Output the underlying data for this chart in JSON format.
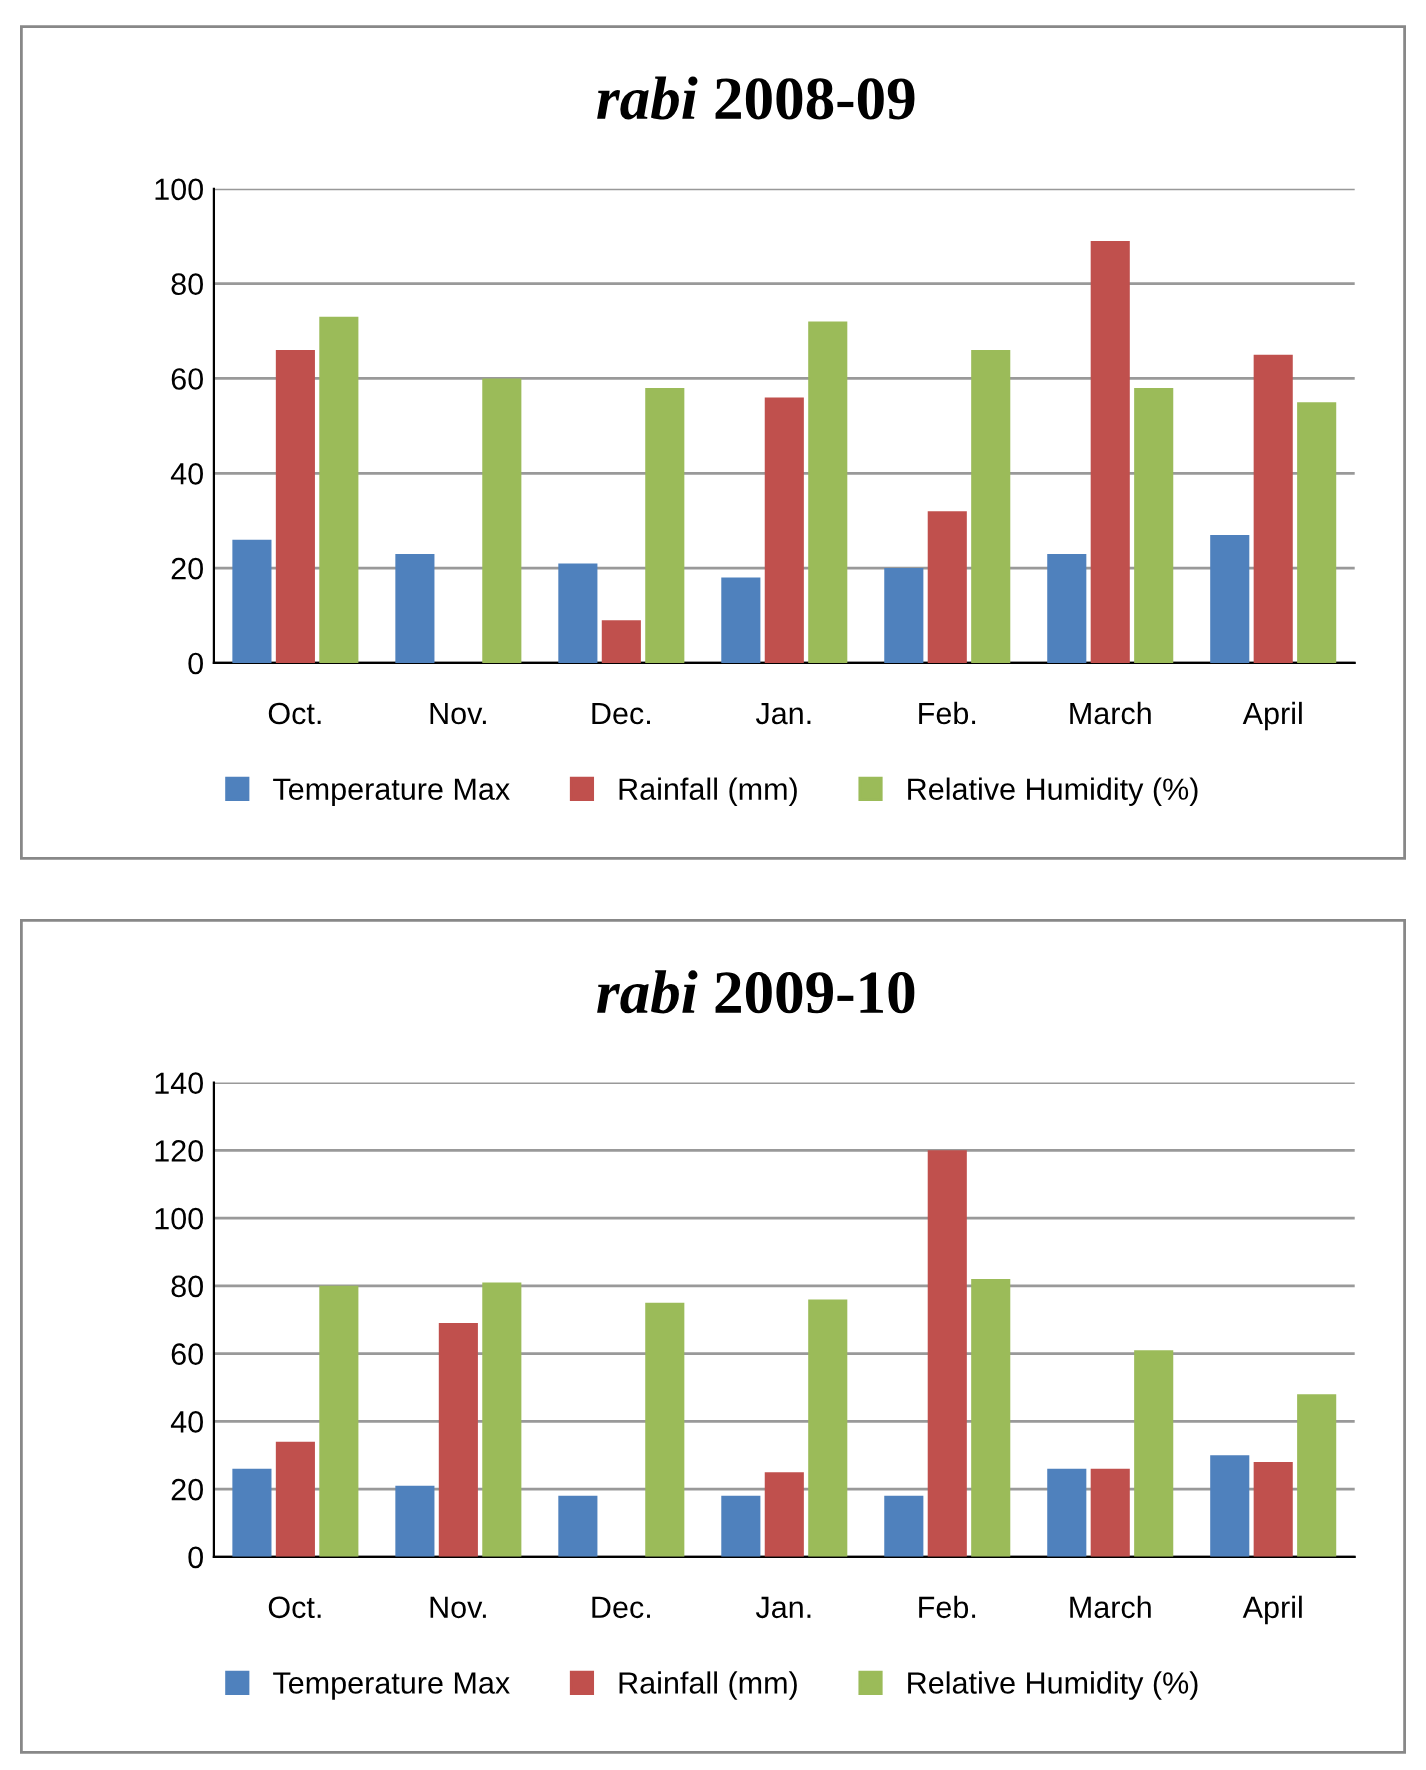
{
  "chart_data": [
    {
      "type": "bar",
      "title": "rabi 2008-09",
      "categories": [
        "Oct.",
        "Nov.",
        "Dec.",
        "Jan.",
        "Feb.",
        "March",
        "April"
      ],
      "series": [
        {
          "name": "Temperature Max",
          "color": "#4f81bd",
          "values": [
            26,
            23,
            21,
            18,
            20,
            23,
            27
          ]
        },
        {
          "name": "Rainfall (mm)",
          "color": "#c0504d",
          "values": [
            66,
            0,
            9,
            56,
            32,
            89,
            65
          ]
        },
        {
          "name": "Relative Humidity (%)",
          "color": "#9bbb59",
          "values": [
            73,
            60,
            58,
            72,
            66,
            58,
            55
          ]
        }
      ],
      "ylim": [
        0,
        100
      ],
      "yticks": [
        0,
        20,
        40,
        60,
        80,
        100
      ],
      "grid": "y",
      "legend": "bottom"
    },
    {
      "type": "bar",
      "title": "rabi 2009-10",
      "categories": [
        "Oct.",
        "Nov.",
        "Dec.",
        "Jan.",
        "Feb.",
        "March",
        "April"
      ],
      "series": [
        {
          "name": "Temperature Max",
          "color": "#4f81bd",
          "values": [
            26,
            21,
            18,
            18,
            18,
            26,
            30
          ]
        },
        {
          "name": "Rainfall (mm)",
          "color": "#c0504d",
          "values": [
            34,
            69,
            0,
            25,
            120,
            26,
            28
          ]
        },
        {
          "name": "Relative Humidity (%)",
          "color": "#9bbb59",
          "values": [
            80,
            81,
            75,
            76,
            82,
            61,
            48
          ]
        }
      ],
      "ylim": [
        0,
        140
      ],
      "yticks": [
        0,
        20,
        40,
        60,
        80,
        100,
        120,
        140
      ],
      "grid": "y",
      "legend": "bottom"
    }
  ]
}
